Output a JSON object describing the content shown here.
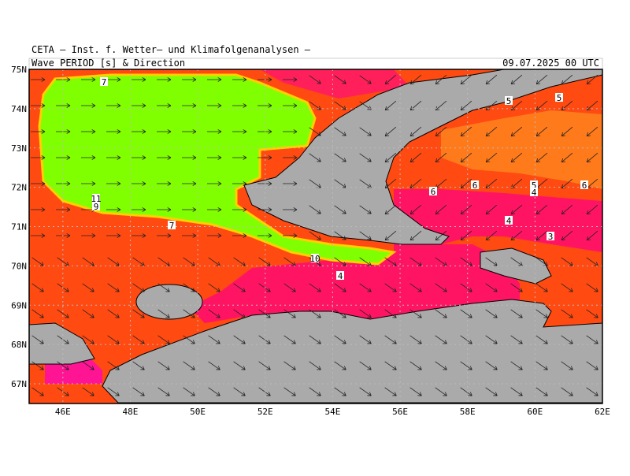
{
  "header": {
    "title": "CETA — Inst. f. Wetter— und Klimafolgenanalysen —",
    "subtitle": "Wave PERIOD [s] & Direction",
    "date": "09.07.2025 00 UTC"
  },
  "map": {
    "lat_ticks": [
      {
        "value": 67,
        "label": "67N"
      },
      {
        "value": 68,
        "label": "68N"
      },
      {
        "value": 69,
        "label": "69N"
      },
      {
        "value": 70,
        "label": "70N"
      },
      {
        "value": 71,
        "label": "71N"
      },
      {
        "value": 72,
        "label": "72N"
      },
      {
        "value": 73,
        "label": "73N"
      },
      {
        "value": 74,
        "label": "74N"
      },
      {
        "value": 75,
        "label": "75N"
      }
    ],
    "lon_ticks": [
      {
        "value": 46,
        "label": "46E"
      },
      {
        "value": 48,
        "label": "48E"
      },
      {
        "value": 50,
        "label": "50E"
      },
      {
        "value": 52,
        "label": "52E"
      },
      {
        "value": 54,
        "label": "54E"
      },
      {
        "value": 56,
        "label": "56E"
      },
      {
        "value": 58,
        "label": "58E"
      },
      {
        "value": 60,
        "label": "60E"
      },
      {
        "value": 62,
        "label": "62E"
      }
    ],
    "contour_labels": [
      7,
      11,
      9,
      7,
      10,
      4,
      5,
      5,
      6,
      6,
      5,
      4,
      6,
      4,
      3
    ]
  }
}
